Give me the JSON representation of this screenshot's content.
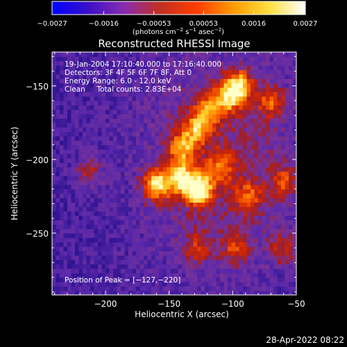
{
  "chart_data": {
    "type": "heatmap",
    "title": "Reconstructed RHESSI Image",
    "xlabel": "Heliocentric X (arcsec)",
    "ylabel": "Heliocentric Y (arcsec)",
    "xlim": [
      -242,
      -50
    ],
    "ylim": [
      -292,
      -127
    ],
    "xticks": [
      -200,
      -150,
      -100,
      -50
    ],
    "xtick_labels": [
      "−200",
      "−150",
      "−100",
      "−50"
    ],
    "yticks": [
      -250,
      -200,
      -150
    ],
    "ytick_labels": [
      "−250",
      "−200",
      "−150"
    ],
    "colorbar": {
      "range": [
        -0.0027,
        0.0027
      ],
      "tick_values": [
        -0.0027,
        -0.0016,
        -0.00053,
        0.00053,
        0.0016,
        0.0027
      ],
      "tick_labels": [
        "−0.0027",
        "−0.0016",
        "−0.00053",
        "0.00053",
        "0.0016",
        "0.0027"
      ],
      "units_prefix": "(photons cm",
      "units_exp1": "−2",
      "units_mid": " s",
      "units_exp2": "−1",
      "units_mid2": " asec",
      "units_exp3": "−2",
      "units_suffix": ")",
      "colors": [
        "#0000ff",
        "#3a10c8",
        "#8a2cb0",
        "#c23020",
        "#ff3d00",
        "#ff9a00",
        "#ffe040",
        "#ffffff"
      ]
    },
    "annotations": [
      "19-Jan-2004 17:10:40.000 to 17:16:40.000",
      "Detectors: 3F 4F 5F 6F 7F 8F, Att 0",
      "Energy Range: 6.0 - 12.0 keV",
      "Clean     Total counts: 2.83E+04"
    ],
    "peak_label": "Position of Peak = [−127,−220]",
    "peak": [
      -127,
      -220
    ],
    "bright_sources": [
      {
        "x": -127,
        "y": -220,
        "amp": 1.0
      },
      {
        "x": -142,
        "y": -212,
        "amp": 0.75
      },
      {
        "x": -160,
        "y": -217,
        "amp": 0.8
      },
      {
        "x": -140,
        "y": -192,
        "amp": 0.6
      },
      {
        "x": -128,
        "y": -178,
        "amp": 0.6
      },
      {
        "x": -104,
        "y": -158,
        "amp": 0.55
      },
      {
        "x": -95,
        "y": -150,
        "amp": 0.8
      },
      {
        "x": -118,
        "y": -165,
        "amp": 0.5
      },
      {
        "x": -70,
        "y": -160,
        "amp": 0.5
      },
      {
        "x": -60,
        "y": -215,
        "amp": 0.45
      },
      {
        "x": -88,
        "y": -225,
        "amp": 0.45
      },
      {
        "x": -110,
        "y": -205,
        "amp": 0.45
      },
      {
        "x": -98,
        "y": -260,
        "amp": 0.4
      },
      {
        "x": -60,
        "y": -260,
        "amp": 0.4
      },
      {
        "x": -128,
        "y": -260,
        "amp": 0.35
      },
      {
        "x": -213,
        "y": -208,
        "amp": 0.35
      }
    ]
  },
  "footer": {
    "timestamp": "28-Apr-2022 08:22"
  }
}
